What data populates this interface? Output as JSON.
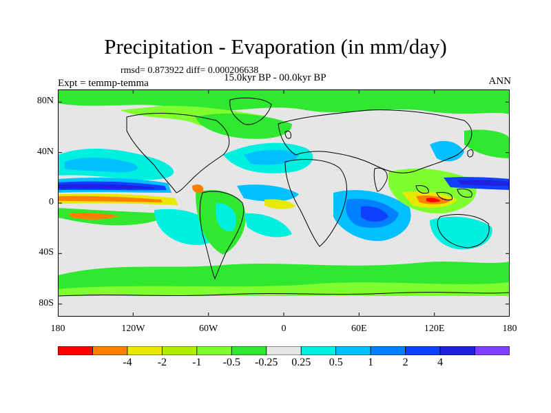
{
  "plot": {
    "title": "Precipitation - Evaporation (in mm/day)",
    "stats": "rmsd= 0.873922 diff= 0.000206638",
    "period": "15.0kyr BP - 00.0kyr BP",
    "experiment": "Expt = temmp-temma",
    "season": "ANN"
  },
  "axes": {
    "lat_labels": [
      "80N",
      "40N",
      "0",
      "40S",
      "80S"
    ],
    "lat_values": [
      80,
      40,
      0,
      -40,
      -80
    ],
    "lon_labels": [
      "180",
      "120W",
      "60W",
      "0",
      "60E",
      "120E",
      "180"
    ],
    "lon_values": [
      -180,
      -120,
      -60,
      0,
      60,
      120,
      180
    ]
  },
  "colorbar": {
    "labels": [
      "-4",
      "-2",
      "-1",
      "-0.5",
      "-0.25",
      "0.25",
      "0.5",
      "1",
      "2",
      "4"
    ],
    "colors": [
      "#ff0000",
      "#ff8000",
      "#e8e800",
      "#b0ef00",
      "#80ff30",
      "#30e830",
      "#e6e6e6",
      "#00f0e0",
      "#00c0ff",
      "#0080ff",
      "#1040ff",
      "#2020e0",
      "#8040ff"
    ]
  }
}
